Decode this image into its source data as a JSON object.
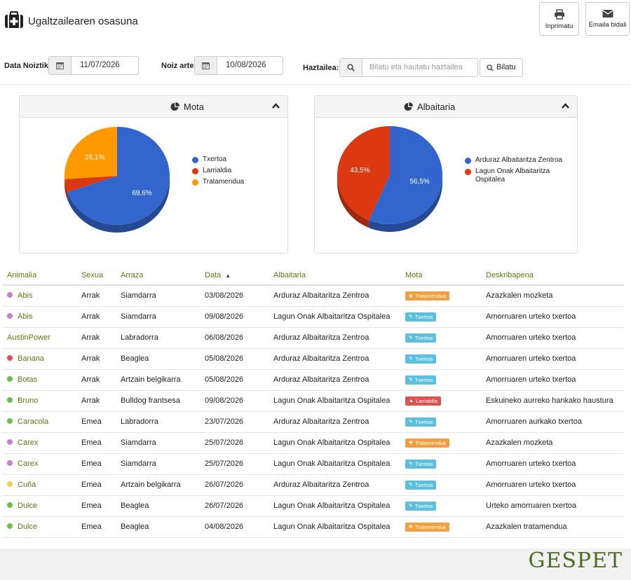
{
  "header": {
    "title": "Ugaltzailearen osasuna",
    "print_label": "Inprimatu",
    "email_label": "Emaila bidali"
  },
  "filters": {
    "from_label": "Data Noiztik",
    "from_value": "11/07/2026",
    "to_label": "Noiz arte",
    "to_value": "10/08/2026",
    "breeder_label": "Haztailea:",
    "search_placeholder": "Bilatu eta hautatu haztailea",
    "search_button": "Bilatu"
  },
  "charts": {
    "mota": {
      "title": "Mota"
    },
    "albaitaria": {
      "title": "Albaitaria"
    }
  },
  "chart_data": [
    {
      "type": "pie",
      "title": "Mota",
      "categories": [
        "Txertoa",
        "Larrialdia",
        "Tratamendua"
      ],
      "values": [
        69.6,
        4.3,
        26.1
      ],
      "data_labels": [
        "69,6%",
        "",
        "26,1%"
      ],
      "colors": [
        "#3366cc",
        "#dc3912",
        "#ff9900"
      ],
      "legend_position": "right"
    },
    {
      "type": "pie",
      "title": "Albaitaria",
      "categories": [
        "Arduraz Albaitaritza Zentroa",
        "Lagun Onak Albaitaritza Ospitalea"
      ],
      "values": [
        56.5,
        43.5
      ],
      "data_labels": [
        "56,5%",
        "43,5%"
      ],
      "colors": [
        "#3366cc",
        "#dc3912"
      ],
      "legend_position": "right"
    }
  ],
  "table": {
    "columns": [
      "Animalia",
      "Sexua",
      "Arraza",
      "Data",
      "Albaitaria",
      "Mota",
      "Deskribapena"
    ],
    "rows": [
      {
        "animal": "Abis",
        "dot": "#c47fd0",
        "sex": "Arrak",
        "breed": "Siamdarra",
        "date": "03/08/2026",
        "vet": "Arduraz Albaitaritza Zentroa",
        "type": "Tratamendua",
        "type_color": "#f0a040",
        "type_icon": "tratamendua-icon",
        "desc": "Azazkalen mozketa"
      },
      {
        "animal": "Abis",
        "dot": "#c47fd0",
        "sex": "Arrak",
        "breed": "Siamdarra",
        "date": "09/08/2026",
        "vet": "Lagun Onak Albaitaritza Ospitalea",
        "type": "Txertoa",
        "type_color": "#5bc0de",
        "type_icon": "txertoa-icon",
        "desc": "Amorruaren urteko txertoa"
      },
      {
        "animal": "AustinPower",
        "dot": "",
        "sex": "Arrak",
        "breed": "Labradorra",
        "date": "06/08/2026",
        "vet": "Arduraz Albaitaritza Zentroa",
        "type": "Txertoa",
        "type_color": "#5bc0de",
        "type_icon": "txertoa-icon",
        "desc": "Amorruaren urteko txertoa"
      },
      {
        "animal": "Banana",
        "dot": "#e84a5a",
        "sex": "Arrak",
        "breed": "Beaglea",
        "date": "05/08/2026",
        "vet": "Arduraz Albaitaritza Zentroa",
        "type": "Txertoa",
        "type_color": "#5bc0de",
        "type_icon": "txertoa-icon",
        "desc": "Amorruaren urteko txertoa"
      },
      {
        "animal": "Botas",
        "dot": "#6abf4b",
        "sex": "Arrak",
        "breed": "Artzain belgikarra",
        "date": "05/08/2026",
        "vet": "Arduraz Albaitaritza Zentroa",
        "type": "Txertoa",
        "type_color": "#5bc0de",
        "type_icon": "txertoa-icon",
        "desc": "Amorruaren urteko txertoa"
      },
      {
        "animal": "Bruno",
        "dot": "#6abf4b",
        "sex": "Arrak",
        "breed": "Bulldog frantsesa",
        "date": "09/08/2026",
        "vet": "Lagun Onak Albaitaritza Ospitalea",
        "type": "Larrialdia",
        "type_color": "#d9534f",
        "type_icon": "larrialdia-icon",
        "desc": "Eskuineko aurreko hankako haustura"
      },
      {
        "animal": "Caracola",
        "dot": "#6abf4b",
        "sex": "Emea",
        "breed": "Labradorra",
        "date": "23/07/2026",
        "vet": "Arduraz Albaitaritza Zentroa",
        "type": "Txertoa",
        "type_color": "#5bc0de",
        "type_icon": "txertoa-icon",
        "desc": "Amorruaren aurkako txertoa"
      },
      {
        "animal": "Carex",
        "dot": "#c47fd0",
        "sex": "Emea",
        "breed": "Siamdarra",
        "date": "25/07/2026",
        "vet": "Lagun Onak Albaitaritza Ospitalea",
        "type": "Tratamendua",
        "type_color": "#f0a040",
        "type_icon": "tratamendua-icon",
        "desc": "Azazkalen mozketa"
      },
      {
        "animal": "Carex",
        "dot": "#c47fd0",
        "sex": "Emea",
        "breed": "Siamdarra",
        "date": "25/07/2026",
        "vet": "Lagun Onak Albaitaritza Ospitalea",
        "type": "Txertoa",
        "type_color": "#5bc0de",
        "type_icon": "txertoa-icon",
        "desc": "Amorruaren urteko txertoa"
      },
      {
        "animal": "Cuña",
        "dot": "#f0cc50",
        "sex": "Emea",
        "breed": "Artzain belgikarra",
        "date": "26/07/2026",
        "vet": "Arduraz Albaitaritza Zentroa",
        "type": "Txertoa",
        "type_color": "#5bc0de",
        "type_icon": "txertoa-icon",
        "desc": "Amorruaren urteko txertoa"
      },
      {
        "animal": "Dulce",
        "dot": "#6abf4b",
        "sex": "Emea",
        "breed": "Beaglea",
        "date": "26/07/2026",
        "vet": "Lagun Onak Albaitaritza Ospitalea",
        "type": "Txertoa",
        "type_color": "#5bc0de",
        "type_icon": "txertoa-icon",
        "desc": "Urteko amorruaren txertoa"
      },
      {
        "animal": "Dulce",
        "dot": "#6abf4b",
        "sex": "Emea",
        "breed": "Beaglea",
        "date": "04/08/2026",
        "vet": "Lagun Onak Albaitaritza Ospitalea",
        "type": "Tratamendua",
        "type_color": "#f0a040",
        "type_icon": "tratamendua-icon",
        "desc": "Azazkalen tratamendua"
      }
    ]
  },
  "footer": {
    "logo": "GESPET"
  }
}
